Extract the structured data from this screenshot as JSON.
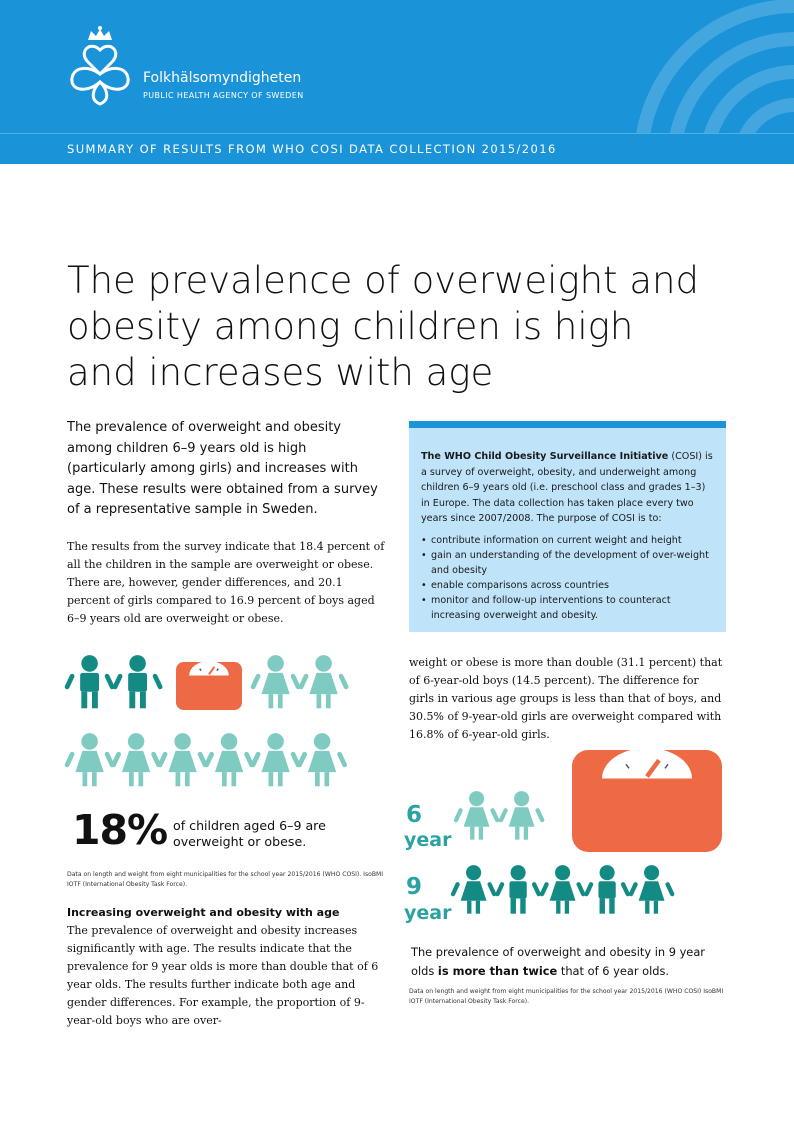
{
  "header": {
    "brand_name": "Folkhälsomyndigheten",
    "brand_subtitle": "PUBLIC HEALTH AGENCY OF SWEDEN",
    "logo_icon": "crown-knot-logo-icon",
    "color": "#1b93d8"
  },
  "banner": {
    "text": "SUMMARY OF RESULTS FROM WHO COSI DATA COLLECTION 2015/2016"
  },
  "headline": "The prevalence of overweight and obesity among children is high and increases with age",
  "intro": "The prevalence of overweight and obesity among children 6–9 years old is high (particularly among girls) and increases with age. These results were obtained from a survey of a representative sample in Sweden.",
  "para1": "The results from the survey indicate that 18.4 percent of all the children in the sample are overweight or obese. There are, however, gender differences, and 20.1 percent of girls compared to 16.9 percent of boys aged 6–9 years old are overweight or obese.",
  "infobox": {
    "title": "The WHO Child Obesity Surveillance Initiative",
    "abbr": " (COSI) is",
    "body": "a survey of overweight, obesity, and underweight among children 6–9 years old (i.e. preschool class and grades 1–3) in Europe. The data collection has taken place every two years since 2007/2008. The purpose of COSI is to:",
    "bullets": [
      "contribute information on current weight and height",
      "gain an understanding of the development of over-weight and obesity",
      "enable comparisons across countries",
      "monitor and follow-up interventions to counteract increasing overweight and obesity."
    ]
  },
  "infographic1": {
    "percent": "18%",
    "caption": "of children aged 6–9 are overweight or obese.",
    "note": "Data on length and weight from eight municipalities for the school year 2015/2016 (WHO COSI). IsoBMI IOTF (International Obesity Task Force).",
    "colors": {
      "dark": "#138a83",
      "light": "#7fcbc2",
      "scale": "#ee6a45"
    }
  },
  "section2": {
    "heading": "Increasing overweight and obesity with age",
    "para": "The prevalence of overweight and obesity increases significantly with age. The results indicate that the prevalence for 9 year olds is more than double that of 6 year olds. The results further indicate both age and gender differences. For example, the proportion of 9-year-old boys who are over-"
  },
  "para3": "weight or obese is more than double (31.1 percent) that of 6-year-old boys (14.5 percent). The difference for girls in various age groups is less than that of boys, and 30.5% of 9-year-old girls are overweight compared with 16.8% of 6-year-old girls.",
  "infographic2": {
    "age6_num": "6",
    "age6_label": "year",
    "age9_num": "9",
    "age9_label": "year",
    "caption_pre": "The prevalence of overweight and obesity in 9 year olds ",
    "caption_bold": "is more than twice",
    "caption_post": " that of 6 year olds.",
    "note": "Data on length and weight from eight municipalities for the school year 2015/2016 (WHO COSI) IsoBMI IOTF (International Obesity Task Force)."
  }
}
